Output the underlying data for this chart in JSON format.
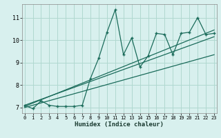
{
  "xlabel": "Humidex (Indice chaleur)",
  "bg_color": "#d8f0ee",
  "line_color": "#1a6b5a",
  "grid_color": "#b0d8d0",
  "x_data": [
    0,
    1,
    2,
    3,
    4,
    5,
    6,
    7,
    8,
    9,
    10,
    11,
    12,
    13,
    14,
    15,
    16,
    17,
    18,
    19,
    20,
    21,
    22,
    23
  ],
  "y_data": [
    7.1,
    6.95,
    7.3,
    7.1,
    7.05,
    7.05,
    7.05,
    7.1,
    8.3,
    9.2,
    10.35,
    11.35,
    9.35,
    10.1,
    8.8,
    9.3,
    10.3,
    10.25,
    9.35,
    10.3,
    10.35,
    11.0,
    10.25,
    10.3
  ],
  "trend1_x": [
    0,
    23
  ],
  "trend1_y": [
    7.05,
    10.45
  ],
  "trend2_x": [
    0,
    23
  ],
  "trend2_y": [
    7.1,
    10.15
  ],
  "trend3_x": [
    0,
    23
  ],
  "trend3_y": [
    7.0,
    9.35
  ],
  "xlim": [
    -0.3,
    23.3
  ],
  "ylim": [
    6.75,
    11.6
  ],
  "yticks": [
    7,
    8,
    9,
    10,
    11
  ],
  "xticks": [
    0,
    1,
    2,
    3,
    4,
    5,
    6,
    7,
    8,
    9,
    10,
    11,
    12,
    13,
    14,
    15,
    16,
    17,
    18,
    19,
    20,
    21,
    22,
    23
  ]
}
